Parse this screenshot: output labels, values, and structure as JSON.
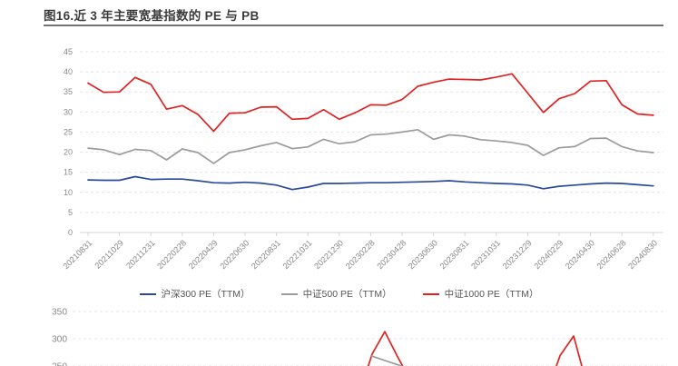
{
  "page": {
    "title": "图16.近 3 年主要宽基指数的 PE 与 PB"
  },
  "ui": {
    "title_color": "#3c3c3c",
    "rule_color": "#737373",
    "grid_color": "#e4e4e4",
    "axis_color": "#d4d4d4",
    "tick_label_color": "#898989",
    "legend_text_color": "#555555"
  },
  "chart_data": [
    {
      "type": "line",
      "ylim": [
        0,
        45
      ],
      "y_ticks": [
        0,
        5,
        10,
        15,
        20,
        25,
        30,
        35,
        40,
        45
      ],
      "grid": "horizontal dashed",
      "legend_position": "bottom center",
      "x_tick_labels": [
        "20210831",
        "20211029",
        "20211231",
        "20220228",
        "20220429",
        "20220630",
        "20220831",
        "20221031",
        "20221230",
        "20230228",
        "20230428",
        "20230630",
        "20230831",
        "20231031",
        "20231229",
        "20240229",
        "20240430",
        "20240628",
        "20240830"
      ],
      "points_per_labeled_tick": 2,
      "n_points": 37,
      "series": [
        {
          "name": "沪深300 PE（TTM）",
          "color": "#2a4a9f",
          "values": [
            13.1,
            13.0,
            13.0,
            13.9,
            13.2,
            13.3,
            13.3,
            12.9,
            12.4,
            12.3,
            12.5,
            12.3,
            11.8,
            10.7,
            11.3,
            12.2,
            12.2,
            12.3,
            12.4,
            12.4,
            12.5,
            12.6,
            12.7,
            12.9,
            12.6,
            12.4,
            12.2,
            12.1,
            11.8,
            10.9,
            11.5,
            11.8,
            12.1,
            12.3,
            12.2,
            11.9,
            11.6
          ]
        },
        {
          "name": "中证500 PE（TTM）",
          "color": "#9c9c9c",
          "values": [
            21.0,
            20.6,
            19.4,
            20.7,
            20.4,
            18.1,
            20.8,
            19.9,
            17.2,
            19.9,
            20.6,
            21.6,
            22.4,
            20.9,
            21.3,
            23.2,
            22.1,
            22.6,
            24.3,
            24.5,
            25.0,
            25.6,
            23.2,
            24.3,
            24.0,
            23.1,
            22.8,
            22.4,
            21.7,
            19.2,
            21.1,
            21.4,
            23.4,
            23.5,
            21.4,
            20.3,
            19.9
          ]
        },
        {
          "name": "中证1000 PE（TTM）",
          "color": "#e02222",
          "values": [
            37.2,
            34.9,
            35.0,
            38.6,
            36.9,
            30.7,
            31.6,
            29.4,
            25.2,
            29.7,
            29.8,
            31.2,
            31.3,
            28.2,
            28.4,
            30.6,
            28.2,
            29.8,
            31.8,
            31.7,
            33.1,
            36.4,
            37.4,
            38.2,
            38.1,
            38.0,
            38.7,
            39.5,
            34.7,
            29.9,
            33.3,
            34.6,
            37.7,
            37.8,
            31.8,
            29.5,
            29.2
          ]
        }
      ]
    },
    {
      "type": "line",
      "note": "second chart cropped by bottom edge of screenshot; only region above value ~250 visible",
      "y_ticks": [
        350,
        300,
        250
      ],
      "grid": "horizontal dashed",
      "points_unit": "[page_x_px, y_value]",
      "visible_fragments": [
        {
          "name": "red-spike-1",
          "color": "#e02222",
          "points": [
            [
              405,
              246
            ],
            [
              410,
              272
            ],
            [
              424,
              313
            ],
            [
              438,
              267
            ],
            [
              445,
              246
            ]
          ]
        },
        {
          "name": "gray-segment",
          "color": "#9c9c9c",
          "points": [
            [
              408,
              269
            ],
            [
              444,
              249
            ]
          ]
        },
        {
          "name": "red-spike-2",
          "color": "#e02222",
          "points": [
            [
              612,
              245
            ],
            [
              617,
              269
            ],
            [
              632,
              305
            ],
            [
              642,
              244
            ]
          ]
        }
      ]
    }
  ]
}
